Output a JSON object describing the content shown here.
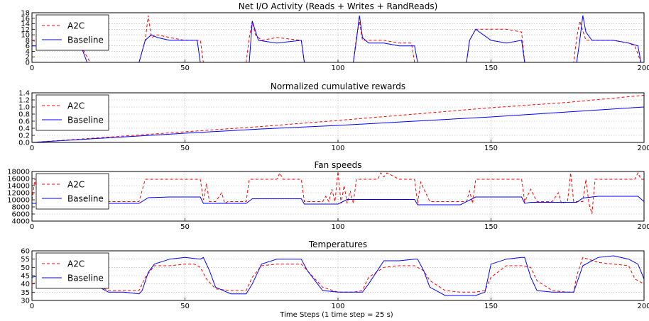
{
  "figure": {
    "xlabel": "Time Steps (1 time step = 25 s)",
    "colors": {
      "A2C": "#ff0000",
      "Baseline": "#0000ff"
    }
  },
  "chart_data": [
    {
      "type": "line",
      "title": "Net I/O Activity (Reads + Writes + RandReads)",
      "xlim": [
        0,
        200
      ],
      "ylim": [
        0,
        18
      ],
      "xticks": [
        0,
        50,
        100,
        150,
        200
      ],
      "yticks": [
        0,
        2,
        4,
        6,
        8,
        10,
        12,
        14,
        16,
        18
      ],
      "legend": "top-left",
      "grid": true,
      "series": [
        {
          "name": "A2C",
          "style": "dashed",
          "x": [
            0,
            5,
            10,
            16,
            19,
            22,
            30,
            35,
            36,
            37,
            38,
            39,
            41,
            45,
            50,
            55,
            56,
            60,
            70,
            71,
            72,
            73,
            75,
            80,
            88,
            89,
            90,
            100,
            105,
            106,
            107,
            108,
            110,
            115,
            120,
            124,
            125,
            130,
            140,
            142,
            143,
            145,
            150,
            155,
            160,
            161,
            162,
            170,
            175,
            177,
            178,
            179,
            181,
            185,
            190,
            195,
            197,
            199
          ],
          "y": [
            8,
            6,
            6,
            6,
            0,
            0,
            0,
            0,
            4,
            8,
            17,
            9,
            10,
            9,
            8,
            8,
            0,
            0,
            0,
            9,
            15,
            10,
            8,
            9,
            8,
            0,
            0,
            0,
            0,
            9,
            15,
            8,
            8,
            8,
            7,
            7,
            0,
            0,
            0,
            0,
            8,
            12,
            12,
            12,
            11,
            0,
            0,
            0,
            0,
            0,
            9,
            15,
            8,
            8,
            8,
            7,
            6,
            0
          ]
        },
        {
          "name": "Baseline",
          "style": "solid",
          "x": [
            0,
            5,
            10,
            16,
            18,
            20,
            30,
            35,
            36,
            37,
            39,
            41,
            45,
            50,
            54,
            55,
            60,
            70,
            71,
            72,
            74,
            80,
            88,
            89,
            90,
            100,
            105,
            106,
            107,
            108,
            110,
            115,
            120,
            125,
            126,
            130,
            140,
            142,
            143,
            145,
            150,
            155,
            160,
            161,
            162,
            170,
            177,
            178,
            179,
            180,
            181,
            183,
            185,
            190,
            195,
            198,
            199
          ],
          "y": [
            6,
            6,
            6,
            6,
            0,
            0,
            0,
            0,
            4,
            8,
            10,
            9,
            8,
            8,
            8,
            0,
            0,
            0,
            0,
            15,
            8,
            7,
            8,
            0,
            0,
            0,
            0,
            8,
            17,
            9,
            7,
            7,
            6,
            6,
            0,
            0,
            0,
            0,
            8,
            12,
            8,
            7,
            8,
            0,
            0,
            0,
            0,
            0,
            8,
            17,
            11,
            8,
            8,
            8,
            7,
            6,
            0
          ]
        }
      ]
    },
    {
      "type": "line",
      "title": "Normalized cumulative rewards",
      "xlim": [
        0,
        200
      ],
      "ylim": [
        0,
        1.4
      ],
      "xticks": [
        0,
        50,
        100,
        150,
        200
      ],
      "yticks": [
        0.0,
        0.2,
        0.4,
        0.6,
        0.8,
        1.0,
        1.2,
        1.4
      ],
      "ytick_labels": [
        "0.0",
        "0.2",
        "0.4",
        "0.6",
        "0.8",
        "1.0",
        "1.2",
        "1.4"
      ],
      "legend": "top-left",
      "grid": true,
      "series": [
        {
          "name": "A2C",
          "style": "dashed",
          "x": [
            0,
            25,
            50,
            75,
            100,
            125,
            150,
            175,
            200
          ],
          "y": [
            0,
            0.15,
            0.3,
            0.45,
            0.62,
            0.8,
            0.98,
            1.13,
            1.33
          ]
        },
        {
          "name": "Baseline",
          "style": "solid",
          "x": [
            0,
            25,
            50,
            75,
            100,
            125,
            150,
            175,
            200
          ],
          "y": [
            0,
            0.13,
            0.26,
            0.38,
            0.48,
            0.6,
            0.72,
            0.86,
            1.0
          ]
        }
      ]
    },
    {
      "type": "line",
      "title": "Fan speeds",
      "xlim": [
        0,
        200
      ],
      "ylim": [
        4000,
        18000
      ],
      "xticks": [
        0,
        50,
        100,
        150,
        200
      ],
      "yticks": [
        4000,
        6000,
        8000,
        10000,
        12000,
        14000,
        16000,
        18000
      ],
      "legend": "top-left",
      "grid": true,
      "series": [
        {
          "name": "A2C",
          "style": "dashed",
          "x": [
            0,
            1,
            2,
            5,
            30,
            35,
            37,
            38,
            45,
            50,
            55,
            56,
            57,
            58,
            60,
            62,
            63,
            64,
            70,
            71,
            72,
            80,
            81,
            82,
            88,
            89,
            90,
            95,
            96,
            97,
            98,
            99,
            100,
            101,
            102,
            103,
            104,
            105,
            106,
            110,
            113,
            114,
            115,
            116,
            120,
            125,
            126,
            127,
            130,
            140,
            142,
            143,
            144,
            145,
            146,
            147,
            150,
            155,
            160,
            161,
            163,
            165,
            167,
            170,
            172,
            173,
            175,
            176,
            177,
            180,
            181,
            182,
            183,
            184,
            185,
            190,
            197,
            198,
            199,
            200
          ],
          "y": [
            10000,
            16000,
            9500,
            9500,
            9500,
            9500,
            15800,
            15800,
            15800,
            15800,
            15800,
            10000,
            14500,
            9500,
            9500,
            12000,
            9000,
            9500,
            9500,
            15800,
            15800,
            15800,
            17600,
            15800,
            15800,
            9500,
            9500,
            9500,
            11000,
            9500,
            13000,
            9500,
            18000,
            9000,
            14000,
            9000,
            12500,
            9000,
            15800,
            15800,
            15800,
            17600,
            16500,
            17600,
            15800,
            15800,
            9000,
            15000,
            9500,
            9500,
            9500,
            12500,
            9000,
            15800,
            15800,
            15800,
            15800,
            15800,
            15800,
            9500,
            13000,
            9500,
            9500,
            9500,
            12000,
            9000,
            9500,
            17600,
            9500,
            9500,
            15800,
            9000,
            6000,
            15800,
            15800,
            15800,
            15800,
            17600,
            15800,
            15800
          ]
        },
        {
          "name": "Baseline",
          "style": "solid",
          "x": [
            0,
            30,
            35,
            38,
            45,
            50,
            55,
            56,
            60,
            70,
            72,
            80,
            88,
            89,
            90,
            100,
            103,
            110,
            120,
            125,
            126,
            130,
            140,
            145,
            150,
            155,
            160,
            161,
            163,
            170,
            175,
            178,
            180,
            185,
            190,
            195,
            198,
            200
          ],
          "y": [
            9000,
            9000,
            9000,
            10600,
            10800,
            10800,
            10800,
            9000,
            9000,
            9000,
            10300,
            10300,
            10300,
            8800,
            8800,
            8800,
            10100,
            10100,
            10100,
            10100,
            8600,
            8600,
            8600,
            10800,
            10800,
            10800,
            10800,
            9000,
            9300,
            9300,
            9300,
            9300,
            10500,
            11000,
            11000,
            11000,
            11000,
            9500
          ]
        }
      ]
    },
    {
      "type": "line",
      "title": "Temperatures",
      "xlim": [
        0,
        200
      ],
      "ylim": [
        30,
        60
      ],
      "xticks": [
        0,
        50,
        100,
        150,
        200
      ],
      "yticks": [
        30,
        35,
        40,
        45,
        50,
        55,
        60
      ],
      "legend": "top-left",
      "grid": true,
      "series": [
        {
          "name": "A2C",
          "style": "dashed",
          "x": [
            0,
            5,
            10,
            15,
            18,
            20,
            25,
            30,
            35,
            37,
            40,
            45,
            50,
            53,
            55,
            57,
            60,
            65,
            70,
            72,
            75,
            80,
            88,
            90,
            93,
            95,
            100,
            105,
            108,
            110,
            115,
            120,
            125,
            128,
            130,
            135,
            140,
            145,
            148,
            150,
            155,
            160,
            163,
            165,
            170,
            175,
            177,
            178,
            180,
            185,
            190,
            195,
            197,
            200
          ],
          "y": [
            40,
            43,
            46,
            46,
            46,
            40,
            36,
            36,
            36,
            44,
            51,
            51,
            52,
            52,
            50,
            43,
            37,
            36,
            36,
            44,
            51,
            52,
            52,
            48,
            42,
            38,
            35,
            35,
            36,
            44,
            50,
            51,
            51,
            48,
            42,
            36,
            35,
            35,
            36,
            44,
            51,
            51,
            50,
            42,
            36,
            35,
            35,
            45,
            56,
            53,
            52,
            51,
            43,
            40
          ]
        },
        {
          "name": "Baseline",
          "style": "solid",
          "x": [
            0,
            5,
            10,
            15,
            18,
            20,
            25,
            30,
            35,
            36,
            38,
            40,
            45,
            50,
            55,
            56,
            58,
            60,
            65,
            70,
            72,
            75,
            80,
            85,
            88,
            90,
            95,
            100,
            105,
            108,
            110,
            115,
            120,
            125,
            126,
            128,
            130,
            135,
            140,
            145,
            148,
            150,
            155,
            160,
            161,
            163,
            165,
            170,
            175,
            177,
            180,
            185,
            190,
            195,
            198,
            200
          ],
          "y": [
            44,
            46,
            46,
            46,
            46,
            40,
            35,
            35,
            34,
            36,
            47,
            52,
            55,
            56,
            55,
            56,
            48,
            38,
            34,
            34,
            40,
            52,
            55,
            55,
            55,
            48,
            36,
            35,
            35,
            35,
            40,
            54,
            54,
            55,
            55,
            48,
            38,
            33,
            33,
            33,
            35,
            52,
            55,
            56,
            56,
            44,
            36,
            35,
            35,
            35,
            51,
            56,
            57,
            55,
            52,
            43
          ]
        }
      ]
    }
  ]
}
